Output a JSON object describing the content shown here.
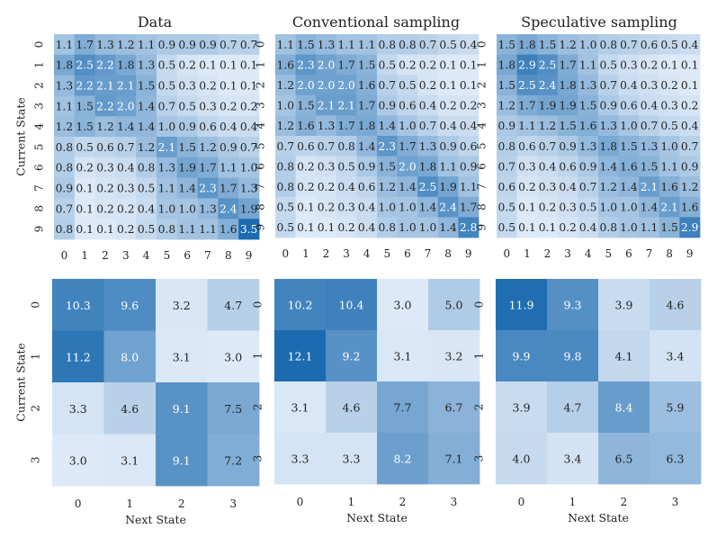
{
  "panel_titles": [
    "Data",
    "Conventional sampling",
    "Speculative sampling"
  ],
  "colors": {
    "low": "#dde9f7",
    "high": "#1c6bb0",
    "text_dark": "#222222",
    "text_light": "#ffffff"
  },
  "chart_data": [
    {
      "type": "heatmap",
      "title": "Data",
      "ylabel": "Current State",
      "xlabel": "",
      "x_ticks": [
        "0",
        "1",
        "2",
        "3",
        "4",
        "5",
        "6",
        "7",
        "8",
        "9"
      ],
      "y_ticks": [
        "0",
        "1",
        "2",
        "3",
        "4",
        "5",
        "6",
        "7",
        "8",
        "9"
      ],
      "values": [
        [
          1.1,
          1.7,
          1.3,
          1.2,
          1.1,
          0.9,
          0.9,
          0.9,
          0.7,
          0.7
        ],
        [
          1.8,
          2.5,
          2.2,
          1.8,
          1.3,
          0.5,
          0.2,
          0.1,
          0.1,
          0.1
        ],
        [
          1.3,
          2.2,
          2.1,
          2.1,
          1.5,
          0.5,
          0.3,
          0.2,
          0.1,
          0.1
        ],
        [
          1.1,
          1.5,
          2.2,
          2.0,
          1.4,
          0.7,
          0.5,
          0.3,
          0.2,
          0.2
        ],
        [
          1.2,
          1.5,
          1.2,
          1.4,
          1.4,
          1.0,
          0.9,
          0.6,
          0.4,
          0.4
        ],
        [
          0.8,
          0.5,
          0.6,
          0.7,
          1.2,
          2.1,
          1.5,
          1.2,
          0.9,
          0.7
        ],
        [
          0.8,
          0.2,
          0.3,
          0.4,
          0.8,
          1.3,
          1.9,
          1.7,
          1.1,
          1.0
        ],
        [
          0.9,
          0.1,
          0.2,
          0.3,
          0.5,
          1.1,
          1.4,
          2.3,
          1.7,
          1.3
        ],
        [
          0.7,
          0.1,
          0.2,
          0.2,
          0.4,
          1.0,
          1.0,
          1.3,
          2.4,
          1.9
        ],
        [
          0.8,
          0.1,
          0.1,
          0.2,
          0.5,
          0.8,
          1.1,
          1.1,
          1.6,
          3.5
        ]
      ],
      "vmin": 0.1,
      "vmax": 3.5
    },
    {
      "type": "heatmap",
      "title": "Conventional sampling",
      "ylabel": "",
      "xlabel": "",
      "x_ticks": [
        "0",
        "1",
        "2",
        "3",
        "4",
        "5",
        "6",
        "7",
        "8",
        "9"
      ],
      "y_ticks": [
        "0",
        "1",
        "2",
        "3",
        "4",
        "5",
        "6",
        "7",
        "8",
        "9"
      ],
      "values": [
        [
          1.1,
          1.5,
          1.3,
          1.1,
          1.1,
          0.8,
          0.8,
          0.7,
          0.5,
          0.4
        ],
        [
          1.6,
          2.3,
          2.0,
          1.7,
          1.5,
          0.5,
          0.2,
          0.2,
          0.1,
          0.1
        ],
        [
          1.2,
          2.0,
          2.0,
          2.0,
          1.6,
          0.7,
          0.5,
          0.2,
          0.1,
          0.1
        ],
        [
          1.0,
          1.5,
          2.1,
          2.1,
          1.7,
          0.9,
          0.6,
          0.4,
          0.2,
          0.2
        ],
        [
          1.2,
          1.6,
          1.3,
          1.7,
          1.8,
          1.4,
          1.0,
          0.7,
          0.4,
          0.4
        ],
        [
          0.7,
          0.6,
          0.7,
          0.8,
          1.4,
          2.3,
          1.7,
          1.3,
          0.9,
          0.6
        ],
        [
          0.8,
          0.2,
          0.3,
          0.5,
          0.9,
          1.5,
          2.0,
          1.8,
          1.1,
          0.9
        ],
        [
          0.8,
          0.2,
          0.2,
          0.4,
          0.6,
          1.2,
          1.4,
          2.5,
          1.9,
          1.1
        ],
        [
          0.5,
          0.1,
          0.2,
          0.3,
          0.4,
          1.0,
          1.0,
          1.4,
          2.4,
          1.7
        ],
        [
          0.5,
          0.1,
          0.1,
          0.2,
          0.4,
          0.8,
          1.0,
          1.0,
          1.4,
          2.8
        ]
      ],
      "vmin": 0.1,
      "vmax": 3.5
    },
    {
      "type": "heatmap",
      "title": "Speculative sampling",
      "ylabel": "",
      "xlabel": "",
      "x_ticks": [
        "0",
        "1",
        "2",
        "3",
        "4",
        "5",
        "6",
        "7",
        "8",
        "9"
      ],
      "y_ticks": [
        "0",
        "1",
        "2",
        "3",
        "4",
        "5",
        "6",
        "7",
        "8",
        "9"
      ],
      "values": [
        [
          1.5,
          1.8,
          1.5,
          1.2,
          1.0,
          0.8,
          0.7,
          0.6,
          0.5,
          0.4
        ],
        [
          1.8,
          2.9,
          2.5,
          1.7,
          1.1,
          0.5,
          0.3,
          0.2,
          0.1,
          0.1
        ],
        [
          1.5,
          2.5,
          2.4,
          1.8,
          1.3,
          0.7,
          0.4,
          0.3,
          0.2,
          0.1
        ],
        [
          1.2,
          1.7,
          1.9,
          1.9,
          1.5,
          0.9,
          0.6,
          0.4,
          0.3,
          0.2
        ],
        [
          0.9,
          1.1,
          1.2,
          1.5,
          1.6,
          1.3,
          1.0,
          0.7,
          0.5,
          0.4
        ],
        [
          0.8,
          0.6,
          0.7,
          0.9,
          1.3,
          1.8,
          1.5,
          1.3,
          1.0,
          0.7
        ],
        [
          0.7,
          0.3,
          0.4,
          0.6,
          0.9,
          1.4,
          1.6,
          1.5,
          1.1,
          0.9
        ],
        [
          0.6,
          0.2,
          0.3,
          0.4,
          0.7,
          1.2,
          1.4,
          2.1,
          1.6,
          1.2
        ],
        [
          0.5,
          0.1,
          0.2,
          0.3,
          0.5,
          1.0,
          1.0,
          1.4,
          2.1,
          1.6
        ],
        [
          0.5,
          0.1,
          0.1,
          0.2,
          0.4,
          0.8,
          1.0,
          1.1,
          1.5,
          2.9
        ]
      ],
      "vmin": 0.1,
      "vmax": 3.5
    },
    {
      "type": "heatmap",
      "title": "",
      "ylabel": "Current State",
      "xlabel": "Next State",
      "x_ticks": [
        "0",
        "1",
        "2",
        "3"
      ],
      "y_ticks": [
        "0",
        "1",
        "2",
        "3"
      ],
      "values": [
        [
          10.3,
          9.6,
          3.2,
          4.7
        ],
        [
          11.2,
          8.0,
          3.1,
          3.0
        ],
        [
          3.3,
          4.6,
          9.1,
          7.5
        ],
        [
          3.0,
          3.1,
          9.1,
          7.2
        ]
      ],
      "vmin": 3.0,
      "vmax": 12.1
    },
    {
      "type": "heatmap",
      "title": "",
      "ylabel": "",
      "xlabel": "Next State",
      "x_ticks": [
        "0",
        "1",
        "2",
        "3"
      ],
      "y_ticks": [
        "0",
        "1",
        "2",
        "3"
      ],
      "values": [
        [
          10.2,
          10.4,
          3.0,
          5.0
        ],
        [
          12.1,
          9.2,
          3.1,
          3.2
        ],
        [
          3.1,
          4.6,
          7.7,
          6.7
        ],
        [
          3.3,
          3.3,
          8.2,
          7.1
        ]
      ],
      "vmin": 3.0,
      "vmax": 12.1
    },
    {
      "type": "heatmap",
      "title": "",
      "ylabel": "",
      "xlabel": "Next State",
      "x_ticks": [
        "0",
        "1",
        "2",
        "3"
      ],
      "y_ticks": [
        "0",
        "1",
        "2",
        "3"
      ],
      "values": [
        [
          11.9,
          9.3,
          3.9,
          4.6
        ],
        [
          9.9,
          9.8,
          4.1,
          3.4
        ],
        [
          3.9,
          4.7,
          8.4,
          5.9
        ],
        [
          4.0,
          3.4,
          6.5,
          6.3
        ]
      ],
      "vmin": 3.0,
      "vmax": 12.1
    }
  ]
}
